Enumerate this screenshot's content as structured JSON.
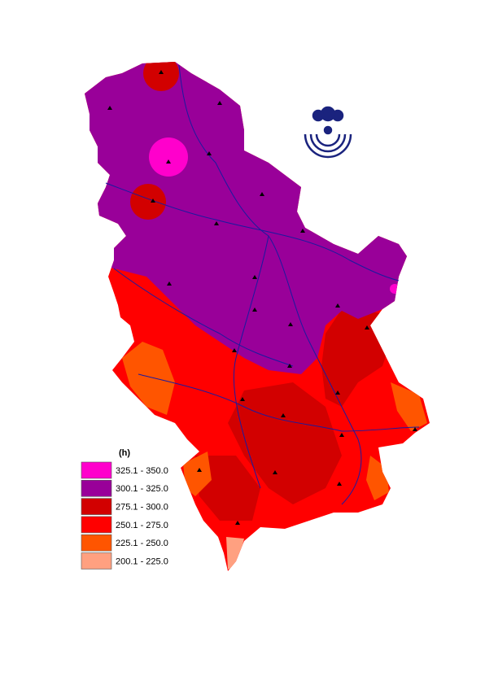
{
  "legend": {
    "title": "(h)",
    "items": [
      {
        "label": "325.1 - 350.0",
        "color": "#ff00cc"
      },
      {
        "label": "300.1 - 325.0",
        "color": "#990099"
      },
      {
        "label": "275.1 - 300.0",
        "color": "#d20000"
      },
      {
        "label": "250.1 - 275.0",
        "color": "#ff0000"
      },
      {
        "label": "225.1 - 250.0",
        "color": "#ff5500"
      },
      {
        "label": "200.1 - 225.0",
        "color": "#ffa080"
      }
    ]
  }
}
